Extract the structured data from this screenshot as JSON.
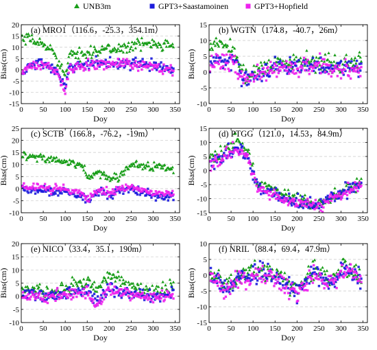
{
  "legend": [
    {
      "label": "UNB3m",
      "marker": "triangle",
      "color": "#1a9e1a"
    },
    {
      "label": "GPT3+Saastamoinen",
      "marker": "square",
      "color": "#1c1cdc"
    },
    {
      "label": "GPT3+Hopfield",
      "marker": "square",
      "color": "#ee22ee"
    }
  ],
  "chart_data": [
    {
      "type": "scatter",
      "title": "(a)  MRO1（116.6，-25.3，354.1m）",
      "xlabel": "Doy",
      "ylabel": "Bias(cm)",
      "xlim": [
        0,
        360
      ],
      "ylim": [
        -15,
        20
      ],
      "xticks": [
        0,
        50,
        100,
        150,
        200,
        250,
        300,
        350
      ],
      "yticks": [
        -15,
        -10,
        -5,
        0,
        5,
        10,
        15,
        20
      ],
      "series": [
        {
          "name": "UNB3m",
          "anchors": [
            [
              2,
              13
            ],
            [
              20,
              13.5
            ],
            [
              40,
              12
            ],
            [
              60,
              10
            ],
            [
              75,
              8
            ],
            [
              90,
              2
            ],
            [
              100,
              -3
            ],
            [
              110,
              6
            ],
            [
              150,
              8
            ],
            [
              200,
              9
            ],
            [
              250,
              10.5
            ],
            [
              300,
              12
            ],
            [
              345,
              11.5
            ]
          ],
          "noise": 2.2
        },
        {
          "name": "GPT3+Saastamoinen",
          "anchors": [
            [
              2,
              -2
            ],
            [
              20,
              2
            ],
            [
              40,
              3
            ],
            [
              60,
              2
            ],
            [
              80,
              -1
            ],
            [
              90,
              -4
            ],
            [
              100,
              -9
            ],
            [
              110,
              1
            ],
            [
              150,
              3
            ],
            [
              200,
              3
            ],
            [
              250,
              3
            ],
            [
              300,
              2
            ],
            [
              345,
              0
            ]
          ],
          "noise": 2.0
        },
        {
          "name": "GPT3+Hopfield",
          "anchors": [
            [
              2,
              -2.5
            ],
            [
              20,
              1.5
            ],
            [
              40,
              2.5
            ],
            [
              60,
              1.5
            ],
            [
              80,
              -1.5
            ],
            [
              90,
              -4.5
            ],
            [
              100,
              -9.5
            ],
            [
              110,
              0.5
            ],
            [
              150,
              2.5
            ],
            [
              200,
              2.5
            ],
            [
              250,
              2.5
            ],
            [
              300,
              1.5
            ],
            [
              345,
              -0.5
            ]
          ],
          "noise": 2.0
        }
      ]
    },
    {
      "type": "scatter",
      "title": "(b)  WGTN（174.8，-40.7，26m）",
      "xlabel": "Doy",
      "ylabel": "Bias(cm)",
      "xlim": [
        0,
        360
      ],
      "ylim": [
        -10,
        15
      ],
      "xticks": [
        0,
        50,
        100,
        150,
        200,
        250,
        300,
        350
      ],
      "yticks": [
        -10,
        -5,
        0,
        5,
        10,
        15
      ],
      "series": [
        {
          "name": "UNB3m",
          "anchors": [
            [
              2,
              8
            ],
            [
              30,
              9
            ],
            [
              60,
              7
            ],
            [
              70,
              1
            ],
            [
              90,
              -1
            ],
            [
              150,
              3
            ],
            [
              200,
              3
            ],
            [
              250,
              3
            ],
            [
              300,
              2.5
            ],
            [
              345,
              4
            ]
          ],
          "noise": 2.5
        },
        {
          "name": "GPT3+Saastamoinen",
          "anchors": [
            [
              2,
              3
            ],
            [
              30,
              4
            ],
            [
              60,
              3
            ],
            [
              70,
              -1
            ],
            [
              90,
              -2
            ],
            [
              150,
              2
            ],
            [
              200,
              2
            ],
            [
              250,
              2.5
            ],
            [
              300,
              1.5
            ],
            [
              345,
              1
            ]
          ],
          "noise": 2.5
        },
        {
          "name": "GPT3+Hopfield",
          "anchors": [
            [
              2,
              2.5
            ],
            [
              30,
              3.5
            ],
            [
              60,
              2.5
            ],
            [
              70,
              -1.5
            ],
            [
              90,
              -2.5
            ],
            [
              150,
              1.5
            ],
            [
              200,
              1.5
            ],
            [
              250,
              2
            ],
            [
              300,
              1
            ],
            [
              345,
              0.5
            ]
          ],
          "noise": 2.5
        }
      ]
    },
    {
      "type": "scatter",
      "title": "(c)  SCTB（166.8，-76.2，-19m）",
      "xlabel": "Doy",
      "ylabel": "Bias(cm)",
      "xlim": [
        0,
        360
      ],
      "ylim": [
        -10,
        25
      ],
      "xticks": [
        0,
        50,
        100,
        150,
        200,
        250,
        300,
        350
      ],
      "yticks": [
        -10,
        -5,
        0,
        5,
        10,
        15,
        20,
        25
      ],
      "series": [
        {
          "name": "UNB3m",
          "anchors": [
            [
              2,
              14
            ],
            [
              50,
              13
            ],
            [
              100,
              11
            ],
            [
              140,
              9
            ],
            [
              155,
              5
            ],
            [
              175,
              7
            ],
            [
              200,
              4
            ],
            [
              220,
              5
            ],
            [
              250,
              10
            ],
            [
              300,
              9
            ],
            [
              345,
              8
            ]
          ],
          "noise": 1.5
        },
        {
          "name": "GPT3+Saastamoinen",
          "anchors": [
            [
              2,
              0
            ],
            [
              50,
              -1
            ],
            [
              100,
              -1.5
            ],
            [
              140,
              -3
            ],
            [
              155,
              -5
            ],
            [
              175,
              -1
            ],
            [
              200,
              -3
            ],
            [
              220,
              -1
            ],
            [
              250,
              0
            ],
            [
              300,
              -3
            ],
            [
              345,
              -3
            ]
          ],
          "noise": 1.4
        },
        {
          "name": "GPT3+Hopfield",
          "anchors": [
            [
              2,
              1
            ],
            [
              50,
              0
            ],
            [
              100,
              -0.5
            ],
            [
              140,
              -2
            ],
            [
              155,
              -4
            ],
            [
              175,
              0
            ],
            [
              200,
              -2
            ],
            [
              220,
              0
            ],
            [
              250,
              1
            ],
            [
              300,
              -2
            ],
            [
              345,
              -2
            ]
          ],
          "noise": 1.4
        }
      ]
    },
    {
      "type": "scatter",
      "title": "(d)  PTGG（121.0，14.53，84.9m）",
      "xlabel": "Doy",
      "ylabel": "Bias(cm)",
      "xlim": [
        0,
        360
      ],
      "ylim": [
        -15,
        15
      ],
      "xticks": [
        0,
        50,
        100,
        150,
        200,
        250,
        300,
        350
      ],
      "yticks": [
        -15,
        -10,
        -5,
        0,
        5,
        10,
        15
      ],
      "series": [
        {
          "name": "UNB3m",
          "anchors": [
            [
              2,
              4
            ],
            [
              30,
              6
            ],
            [
              60,
              11
            ],
            [
              90,
              6
            ],
            [
              110,
              -5
            ],
            [
              130,
              -6
            ],
            [
              160,
              -8
            ],
            [
              200,
              -10
            ],
            [
              250,
              -12
            ],
            [
              280,
              -9
            ],
            [
              300,
              -8
            ],
            [
              320,
              -6
            ],
            [
              345,
              -4
            ]
          ],
          "noise": 2.0
        },
        {
          "name": "GPT3+Saastamoinen",
          "anchors": [
            [
              2,
              2
            ],
            [
              30,
              5
            ],
            [
              60,
              8.5
            ],
            [
              90,
              4
            ],
            [
              110,
              -6
            ],
            [
              130,
              -7
            ],
            [
              160,
              -9
            ],
            [
              200,
              -11
            ],
            [
              250,
              -12.5
            ],
            [
              280,
              -9
            ],
            [
              300,
              -8.5
            ],
            [
              320,
              -6.5
            ],
            [
              345,
              -5
            ]
          ],
          "noise": 2.0
        },
        {
          "name": "GPT3+Hopfield",
          "anchors": [
            [
              2,
              1.5
            ],
            [
              30,
              4.5
            ],
            [
              60,
              8
            ],
            [
              90,
              3.5
            ],
            [
              110,
              -6.5
            ],
            [
              130,
              -7.5
            ],
            [
              160,
              -9.5
            ],
            [
              200,
              -11.5
            ],
            [
              250,
              -13
            ],
            [
              280,
              -9.5
            ],
            [
              300,
              -9
            ],
            [
              320,
              -7
            ],
            [
              345,
              -5.5
            ]
          ],
          "noise": 2.0
        }
      ]
    },
    {
      "type": "scatter",
      "title": "(e)  NICO（33.4，35.1，190m）",
      "xlabel": "Doy",
      "ylabel": "Bias(cm)",
      "xlim": [
        0,
        360
      ],
      "ylim": [
        -10,
        20
      ],
      "xticks": [
        0,
        50,
        100,
        150,
        200,
        250,
        300,
        350
      ],
      "yticks": [
        -10,
        -5,
        0,
        5,
        10,
        15,
        20
      ],
      "series": [
        {
          "name": "UNB3m",
          "anchors": [
            [
              2,
              3
            ],
            [
              50,
              2
            ],
            [
              100,
              3
            ],
            [
              150,
              6
            ],
            [
              170,
              2
            ],
            [
              200,
              8
            ],
            [
              220,
              7
            ],
            [
              250,
              4
            ],
            [
              300,
              2
            ],
            [
              345,
              3
            ]
          ],
          "noise": 2.5
        },
        {
          "name": "GPT3+Saastamoinen",
          "anchors": [
            [
              2,
              1
            ],
            [
              50,
              0
            ],
            [
              100,
              1
            ],
            [
              150,
              2
            ],
            [
              170,
              -3
            ],
            [
              200,
              3
            ],
            [
              220,
              2
            ],
            [
              250,
              1
            ],
            [
              300,
              0
            ],
            [
              345,
              1
            ]
          ],
          "noise": 2.0
        },
        {
          "name": "GPT3+Hopfield",
          "anchors": [
            [
              2,
              0.5
            ],
            [
              50,
              -0.5
            ],
            [
              100,
              0.5
            ],
            [
              150,
              1.5
            ],
            [
              170,
              -3.5
            ],
            [
              200,
              2.5
            ],
            [
              220,
              1.5
            ],
            [
              250,
              0.5
            ],
            [
              300,
              -0.5
            ],
            [
              345,
              0.5
            ]
          ],
          "noise": 2.0
        }
      ]
    },
    {
      "type": "scatter",
      "title": "(f)  NRIL（88.4，69.4，47.9m）",
      "xlabel": "Doy",
      "ylabel": "Bias(cm)",
      "xlim": [
        0,
        360
      ],
      "ylim": [
        -15,
        10
      ],
      "xticks": [
        0,
        50,
        100,
        150,
        200,
        250,
        300,
        350
      ],
      "yticks": [
        -15,
        -10,
        -5,
        0,
        5,
        10
      ],
      "series": [
        {
          "name": "UNB3m",
          "anchors": [
            [
              2,
              1
            ],
            [
              40,
              -3
            ],
            [
              80,
              1
            ],
            [
              120,
              2
            ],
            [
              160,
              0
            ],
            [
              200,
              -5
            ],
            [
              240,
              2
            ],
            [
              280,
              -2
            ],
            [
              300,
              3
            ],
            [
              345,
              0
            ]
          ],
          "noise": 2.5
        },
        {
          "name": "GPT3+Saastamoinen",
          "anchors": [
            [
              2,
              0
            ],
            [
              40,
              -4
            ],
            [
              80,
              0
            ],
            [
              120,
              1
            ],
            [
              160,
              -1
            ],
            [
              200,
              -6
            ],
            [
              240,
              1
            ],
            [
              280,
              -3
            ],
            [
              300,
              2
            ],
            [
              345,
              -1
            ]
          ],
          "noise": 2.5
        },
        {
          "name": "GPT3+Hopfield",
          "anchors": [
            [
              2,
              -0.5
            ],
            [
              40,
              -4.5
            ],
            [
              80,
              -0.5
            ],
            [
              120,
              0.5
            ],
            [
              160,
              -1.5
            ],
            [
              200,
              -6.5
            ],
            [
              240,
              0.5
            ],
            [
              280,
              -3.5
            ],
            [
              300,
              1.5
            ],
            [
              345,
              -1.5
            ]
          ],
          "noise": 2.5
        }
      ]
    }
  ]
}
